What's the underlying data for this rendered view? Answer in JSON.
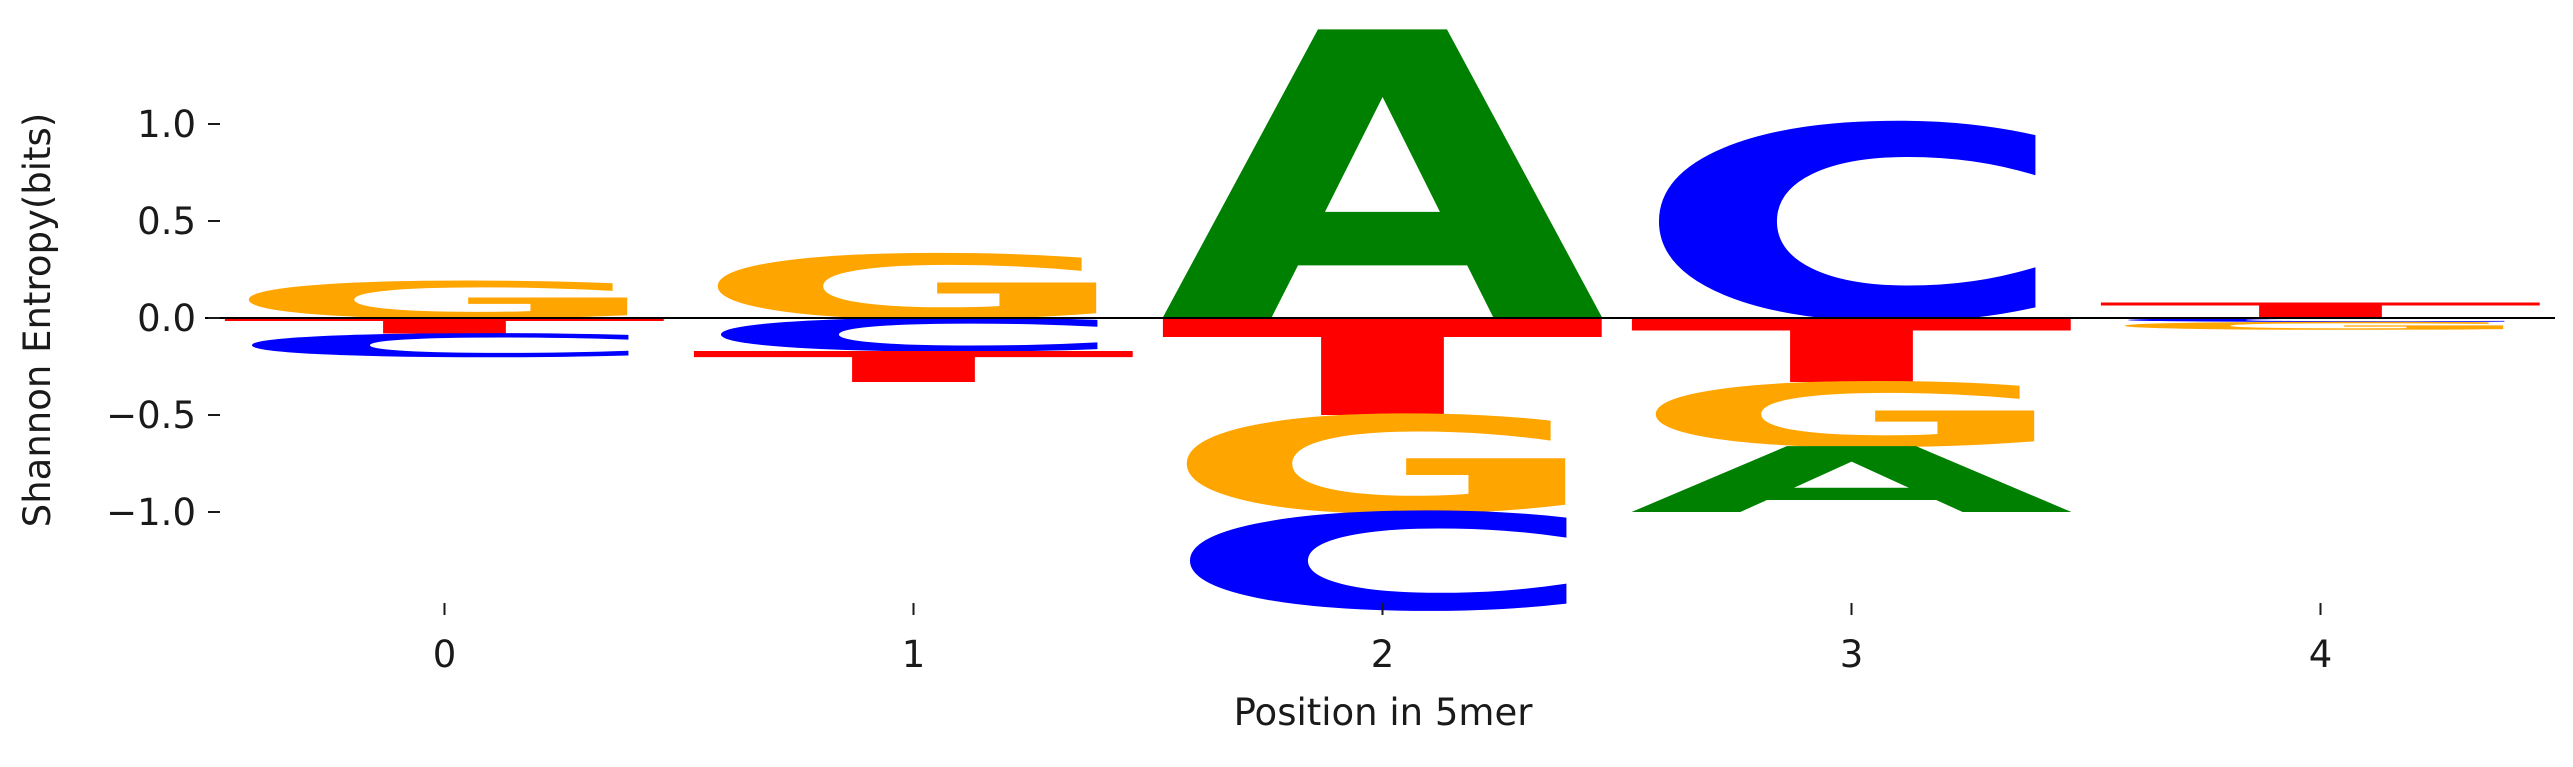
{
  "chart_data": {
    "type": "sequence-logo",
    "title": "",
    "xlabel": "Position in 5mer",
    "ylabel": "Shannon Entropy(bits)",
    "x_ticks": [
      "0",
      "1",
      "2",
      "3",
      "4"
    ],
    "y_ticks": [
      {
        "value": 1.0,
        "label": "1.0"
      },
      {
        "value": 0.5,
        "label": "0.5"
      },
      {
        "value": 0.0,
        "label": "0.0"
      },
      {
        "value": -0.5,
        "label": "−0.5"
      },
      {
        "value": -1.0,
        "label": "−1.0"
      }
    ],
    "ylim": [
      -1.5,
      1.5
    ],
    "xlim": [
      -0.5,
      4.5
    ],
    "grid": false,
    "zero_line": true,
    "colors": {
      "A": "#008000",
      "C": "#0000ff",
      "G": "#ffa500",
      "T": "#ff0000"
    },
    "positions": [
      {
        "pos": 0,
        "stacks": [
          {
            "base": "G",
            "value": 0.19
          },
          {
            "base": "T",
            "value": -0.08
          },
          {
            "base": "C",
            "value": -0.12
          }
        ]
      },
      {
        "pos": 1,
        "stacks": [
          {
            "base": "G",
            "value": 0.33
          },
          {
            "base": "C",
            "value": -0.17
          },
          {
            "base": "T",
            "value": -0.16
          }
        ]
      },
      {
        "pos": 2,
        "stacks": [
          {
            "base": "A",
            "value": 1.49
          },
          {
            "base": "T",
            "value": -0.5
          },
          {
            "base": "G",
            "value": -0.5
          },
          {
            "base": "C",
            "value": -0.5
          }
        ]
      },
      {
        "pos": 3,
        "stacks": [
          {
            "base": "C",
            "value": 1.0
          },
          {
            "base": "T",
            "value": -0.33
          },
          {
            "base": "G",
            "value": -0.33
          },
          {
            "base": "A",
            "value": -0.34
          }
        ]
      },
      {
        "pos": 4,
        "stacks": [
          {
            "base": "T",
            "value": 0.08
          },
          {
            "base": "C",
            "value": -0.02
          },
          {
            "base": "G",
            "value": -0.04
          }
        ]
      }
    ]
  }
}
